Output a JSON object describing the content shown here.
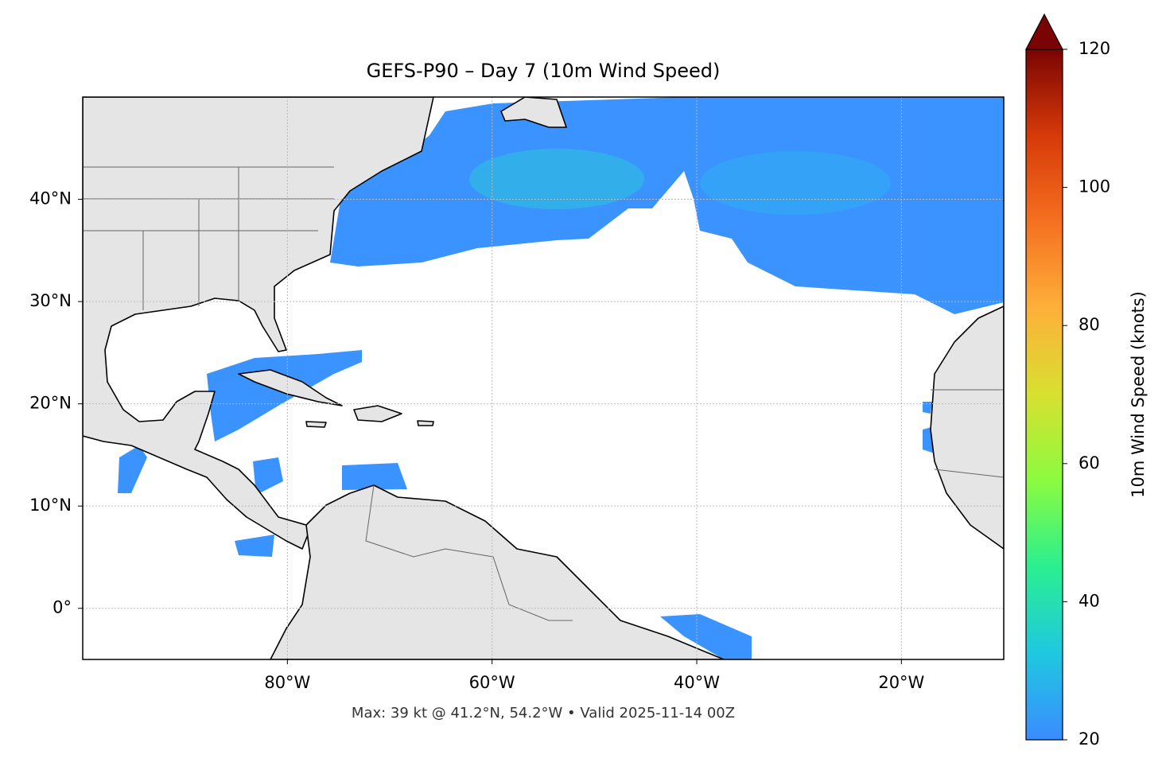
{
  "chart_data": {
    "type": "map",
    "title": "GEFS-P90 – Day 7 (10m Wind Speed)",
    "footnote": "Max: 39 kt @ 41.2°N, 54.2°W • Valid 2025-11-14 00Z",
    "xlim": [
      -100,
      -10
    ],
    "ylim": [
      -5,
      50
    ],
    "xticks": [
      {
        "value": -80,
        "label": "80°W"
      },
      {
        "value": -60,
        "label": "60°W"
      },
      {
        "value": -40,
        "label": "40°W"
      },
      {
        "value": -20,
        "label": "20°W"
      }
    ],
    "yticks": [
      {
        "value": 0,
        "label": "0°"
      },
      {
        "value": 10,
        "label": "10°N"
      },
      {
        "value": 20,
        "label": "20°N"
      },
      {
        "value": 30,
        "label": "30°N"
      },
      {
        "value": 40,
        "label": "40°N"
      }
    ],
    "grid": true,
    "colorbar": {
      "label": "10m Wind Speed (knots)",
      "lim": [
        20,
        120
      ],
      "ticks": [
        20,
        40,
        60,
        80,
        100,
        120
      ],
      "colors": [
        "#3b8cff",
        "#1fc8e0",
        "#2aef90",
        "#8bfb40",
        "#d8e030",
        "#feb03a",
        "#f57020",
        "#d63a08",
        "#7a0403"
      ],
      "extend": "max"
    }
  }
}
